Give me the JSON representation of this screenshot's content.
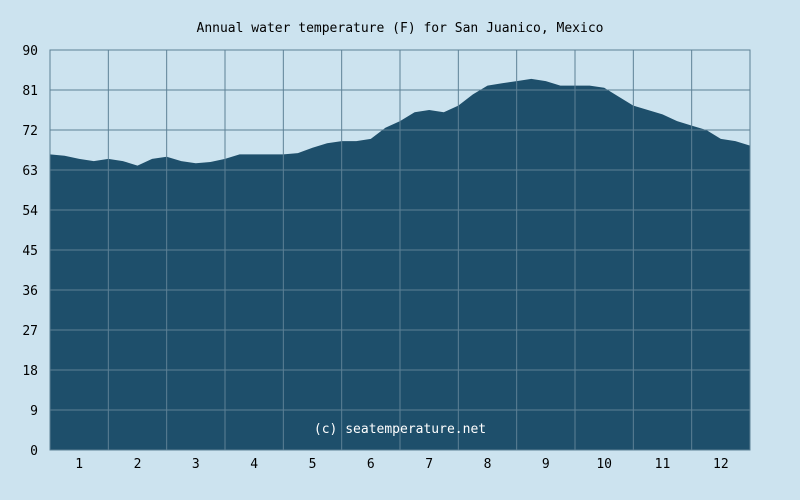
{
  "chart_data": {
    "type": "area",
    "title": "Annual water temperature (F) for San Juanico, Mexico",
    "xlabel": "",
    "ylabel": "",
    "watermark": "(c) seatemperature.net",
    "categories": [
      "1",
      "2",
      "3",
      "4",
      "5",
      "6",
      "7",
      "8",
      "9",
      "10",
      "11",
      "12"
    ],
    "xlim": [
      0.5,
      12.5
    ],
    "ylim": [
      0,
      90
    ],
    "yticks": [
      "0",
      "9",
      "18",
      "27",
      "36",
      "45",
      "54",
      "63",
      "72",
      "81",
      "90"
    ],
    "grid": true,
    "colors": {
      "background": "#cce3ef",
      "plot_background": "#cce3ef",
      "fill": "#1e4f6b",
      "grid": "#5d8196"
    },
    "series": [
      {
        "x": [
          0.5,
          0.75,
          1.0,
          1.25,
          1.5,
          1.75,
          2.0,
          2.25,
          2.5,
          2.75,
          3.0,
          3.25,
          3.5,
          3.75,
          4.0,
          4.25,
          4.5,
          4.75,
          5.0,
          5.25,
          5.5,
          5.75,
          6.0,
          6.25,
          6.5,
          6.75,
          7.0,
          7.25,
          7.5,
          7.75,
          8.0,
          8.25,
          8.5,
          8.75,
          9.0,
          9.25,
          9.5,
          9.75,
          10.0,
          10.25,
          10.5,
          10.75,
          11.0,
          11.25,
          11.5,
          11.75,
          12.0,
          12.25,
          12.5
        ],
        "values": [
          66.5,
          66.2,
          65.5,
          65.0,
          65.5,
          65.0,
          64.0,
          65.5,
          66.0,
          65.0,
          64.5,
          64.8,
          65.5,
          66.5,
          66.5,
          66.5,
          66.5,
          66.8,
          68.0,
          69.0,
          69.5,
          69.5,
          70.0,
          72.5,
          74.0,
          76.0,
          76.5,
          76.0,
          77.5,
          80.0,
          82.0,
          82.5,
          83.0,
          83.5,
          83.0,
          82.0,
          82.0,
          82.0,
          81.5,
          79.5,
          77.5,
          76.5,
          75.5,
          74.0,
          73.0,
          72.0,
          70.0,
          69.5,
          68.5
        ]
      }
    ]
  }
}
